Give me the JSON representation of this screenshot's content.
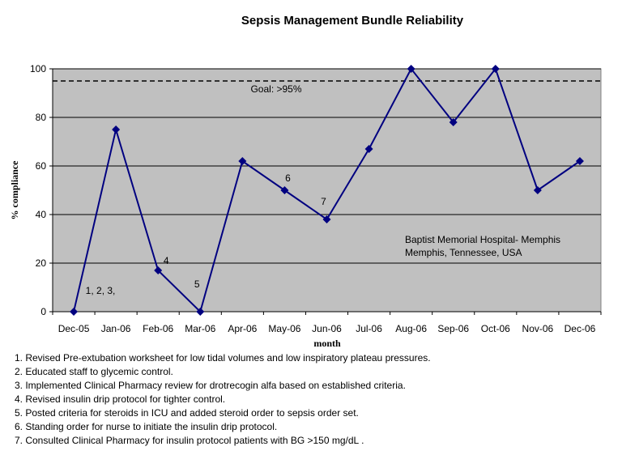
{
  "chart_data": {
    "type": "line",
    "title": "Sepsis Management Bundle  Reliability",
    "xlabel": "month",
    "ylabel": "% compliance",
    "categories": [
      "Dec-05",
      "Jan-06",
      "Feb-06",
      "Mar-06",
      "Apr-06",
      "May-06",
      "Jun-06",
      "Jul-06",
      "Aug-06",
      "Sep-06",
      "Oct-06",
      "Nov-06",
      "Dec-06"
    ],
    "values": [
      0,
      75,
      17,
      0,
      62,
      50,
      38,
      67,
      100,
      78,
      100,
      50,
      62
    ],
    "ylim": [
      0,
      100
    ],
    "yticks": [
      0,
      20,
      40,
      60,
      80,
      100
    ],
    "grid": true,
    "goal": {
      "value": 95,
      "label": "Goal: >95%"
    },
    "point_labels": [
      {
        "index": 0,
        "text": "1, 2, 3,"
      },
      {
        "index": 2,
        "text": "4"
      },
      {
        "index": 3,
        "text": "5"
      },
      {
        "index": 5,
        "text": "6"
      },
      {
        "index": 6,
        "text": "7"
      }
    ],
    "annotation": [
      "Baptist Memorial Hospital- Memphis",
      "Memphis, Tennessee, USA"
    ],
    "colors": {
      "plot_bg": "#c0c0c0",
      "line": "#000080",
      "grid": "#000000",
      "goal": "#000000"
    }
  },
  "notes": [
    "1. Revised Pre-extubation worksheet for low tidal volumes and low inspiratory plateau pressures.",
    "2. Educated staff to glycemic control.",
    "3. Implemented Clinical Pharmacy review for drotrecogin alfa based on established criteria.",
    "4. Revised insulin drip protocol for tighter control.",
    "5. Posted criteria for steroids in ICU and added steroid order to sepsis order set.",
    "6. Standing order for nurse to initiate the insulin drip protocol.",
    "7. Consulted Clinical Pharmacy for insulin protocol patients with BG >150 mg/dL ."
  ]
}
